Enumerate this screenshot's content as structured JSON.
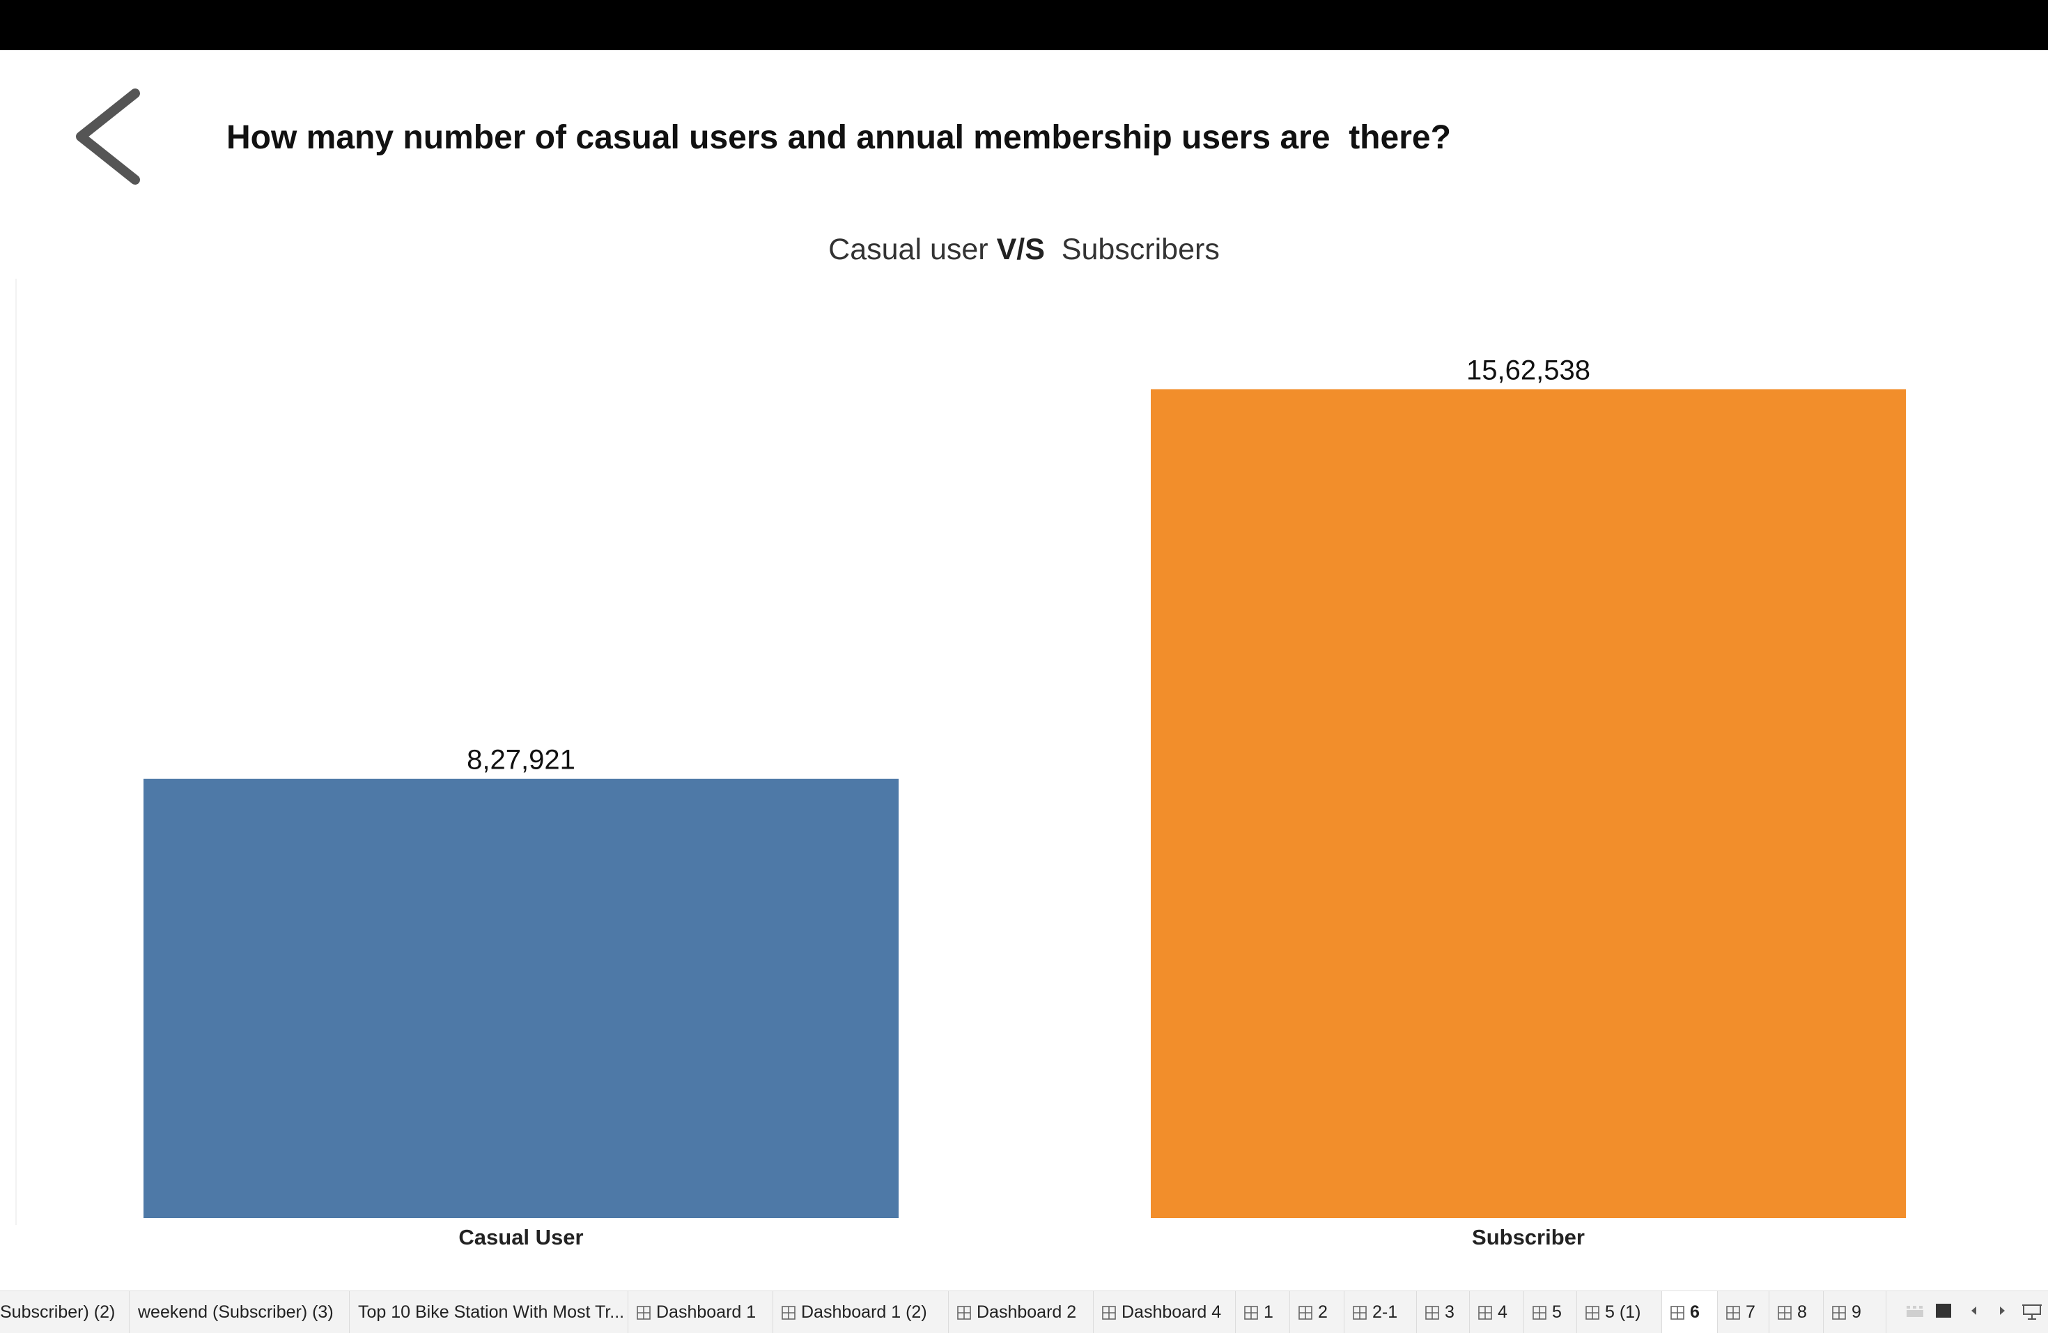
{
  "page": {
    "question": "How many number of casual users and annual membership users are  there?",
    "back_icon": "chevron-left-icon"
  },
  "chart_data": {
    "type": "bar",
    "title_parts": [
      "Casual user ",
      "V/S",
      "  Subscribers"
    ],
    "categories": [
      "Casual User",
      "Subscriber"
    ],
    "values": [
      827921,
      1562538
    ],
    "value_labels": [
      "8,27,921",
      "15,62,538"
    ],
    "colors": [
      "#4e79a7",
      "#f28e2b"
    ],
    "xlabel": "",
    "ylabel": "",
    "ylim": [
      0,
      1600000
    ],
    "grid": false,
    "legend": "none"
  },
  "tabs": {
    "items": [
      {
        "label": "Subscriber) (2)",
        "icon": false
      },
      {
        "label": "weekend (Subscriber) (3)",
        "icon": false
      },
      {
        "label": "Top 10 Bike Station With Most Tr...",
        "icon": false
      },
      {
        "label": "Dashboard 1",
        "icon": true
      },
      {
        "label": "Dashboard 1 (2)",
        "icon": true
      },
      {
        "label": "Dashboard 2",
        "icon": true
      },
      {
        "label": "Dashboard 4",
        "icon": true
      },
      {
        "label": "1",
        "icon": true
      },
      {
        "label": "2",
        "icon": true
      },
      {
        "label": "2-1",
        "icon": true
      },
      {
        "label": "3",
        "icon": true
      },
      {
        "label": "4",
        "icon": true
      },
      {
        "label": "5",
        "icon": true
      },
      {
        "label": "5 (1)",
        "icon": true
      },
      {
        "label": "6",
        "icon": true,
        "active": true
      },
      {
        "label": "7",
        "icon": true
      },
      {
        "label": "8",
        "icon": true
      },
      {
        "label": "9",
        "icon": true
      }
    ],
    "controls": [
      "filmstrip-view-icon",
      "single-sheet-icon",
      "scroll-left-icon",
      "scroll-right-icon",
      "presentation-mode-icon"
    ]
  }
}
